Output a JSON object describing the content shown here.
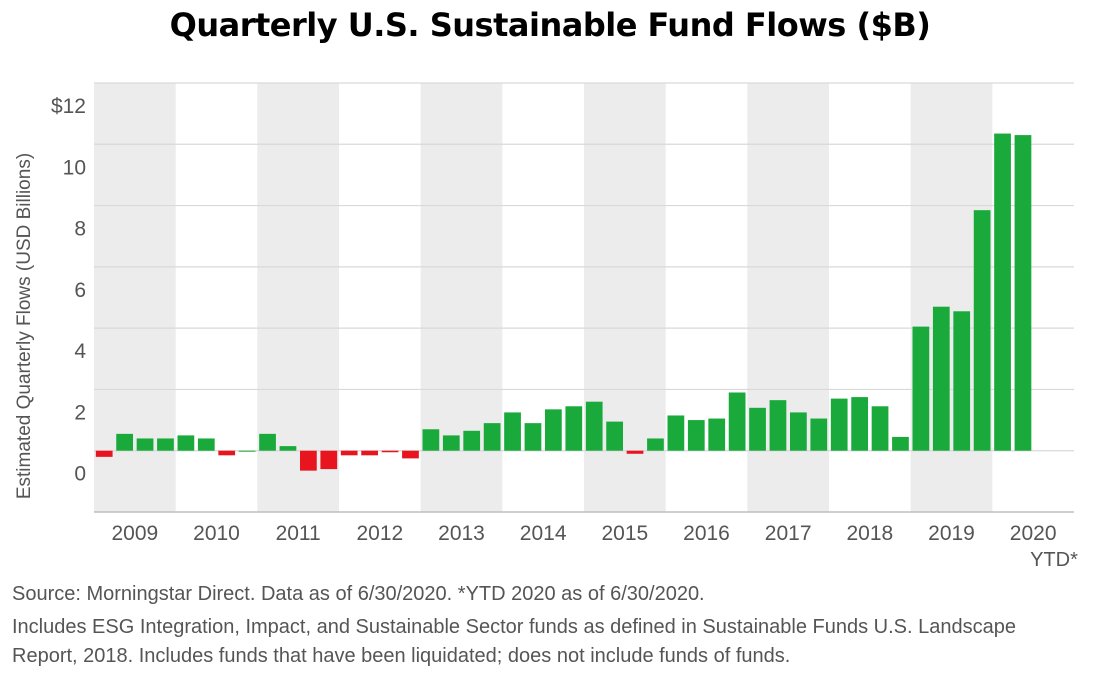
{
  "chart_data": {
    "type": "bar",
    "title": "Quarterly U.S. Sustainable Fund Flows ($B)",
    "xlabel": "",
    "ylabel": "Estimated Quarterly Flows (USD Billions)",
    "ylim": [
      -2,
      12
    ],
    "y_ticks": [
      {
        "value": 12,
        "label": "$12"
      },
      {
        "value": 10,
        "label": "10"
      },
      {
        "value": 8,
        "label": "8"
      },
      {
        "value": 6,
        "label": "6"
      },
      {
        "value": 4,
        "label": "4"
      },
      {
        "value": 2,
        "label": "2"
      },
      {
        "value": 0,
        "label": "0"
      }
    ],
    "grid": true,
    "legend": "none",
    "colors": {
      "positive": "#1aaa3c",
      "negative": "#e8141e",
      "band": "#ececec",
      "grid": "#d9d9d9",
      "axis": "#555555"
    },
    "years": [
      "2009",
      "2010",
      "2011",
      "2012",
      "2013",
      "2014",
      "2015",
      "2016",
      "2017",
      "2018",
      "2019",
      "2020"
    ],
    "year_note": "YTD*",
    "categories": [
      "2009 Q1",
      "2009 Q2",
      "2009 Q3",
      "2009 Q4",
      "2010 Q1",
      "2010 Q2",
      "2010 Q3",
      "2010 Q4",
      "2011 Q1",
      "2011 Q2",
      "2011 Q3",
      "2011 Q4",
      "2012 Q1",
      "2012 Q2",
      "2012 Q3",
      "2012 Q4",
      "2013 Q1",
      "2013 Q2",
      "2013 Q3",
      "2013 Q4",
      "2014 Q1",
      "2014 Q2",
      "2014 Q3",
      "2014 Q4",
      "2015 Q1",
      "2015 Q2",
      "2015 Q3",
      "2015 Q4",
      "2016 Q1",
      "2016 Q2",
      "2016 Q3",
      "2016 Q4",
      "2017 Q1",
      "2017 Q2",
      "2017 Q3",
      "2017 Q4",
      "2018 Q1",
      "2018 Q2",
      "2018 Q3",
      "2018 Q4",
      "2019 Q1",
      "2019 Q2",
      "2019 Q3",
      "2019 Q4",
      "2020 Q1",
      "2020 Q2"
    ],
    "values": [
      -0.2,
      0.55,
      0.4,
      0.4,
      0.5,
      0.4,
      -0.15,
      0.0,
      0.55,
      0.15,
      -0.65,
      -0.6,
      -0.15,
      -0.15,
      -0.05,
      -0.25,
      0.7,
      0.5,
      0.65,
      0.9,
      1.25,
      0.9,
      1.35,
      1.45,
      1.6,
      0.95,
      -0.1,
      0.4,
      1.15,
      1.0,
      1.05,
      1.9,
      1.4,
      1.65,
      1.25,
      1.05,
      1.7,
      1.75,
      1.45,
      0.45,
      4.05,
      4.7,
      4.55,
      7.85,
      10.35,
      10.3
    ]
  },
  "footnotes": [
    "Source: Morningstar Direct. Data as of 6/30/2020. *YTD 2020 as of 6/30/2020.",
    "Includes ESG Integration, Impact, and Sustainable Sector funds as defined in Sustainable Funds U.S. Landscape",
    "Report, 2018. Includes funds that have been liquidated; does not include funds of funds."
  ]
}
